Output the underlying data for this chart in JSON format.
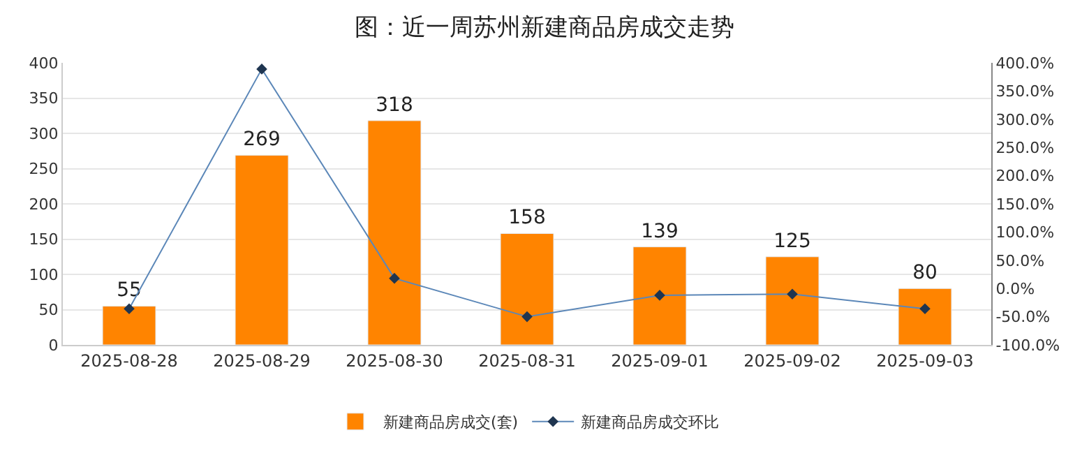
{
  "chart_data": {
    "type": "bar",
    "title": "图：近一周苏州新建商品房成交走势",
    "categories": [
      "2025-08-28",
      "2025-08-29",
      "2025-08-30",
      "2025-08-31",
      "2025-09-01",
      "2025-09-02",
      "2025-09-03"
    ],
    "series": [
      {
        "name": "新建商品房成交(套)",
        "color": "#ff8400",
        "values": [
          55,
          269,
          318,
          158,
          139,
          125,
          80
        ],
        "data_labels": true
      },
      {
        "name": "新建商品房成交环比",
        "type": "line",
        "axis": "y2",
        "color": "#5b87b8",
        "marker": "diamond",
        "values": [
          -36,
          389,
          18,
          -50,
          -12,
          -10,
          -36
        ]
      }
    ],
    "ylim": [
      0,
      400
    ],
    "yticks": [
      0,
      50,
      100,
      150,
      200,
      250,
      300,
      350,
      400
    ],
    "y2lim": [
      -100,
      400
    ],
    "y2ticks": [
      {
        "value": -100,
        "label": "-100.0%"
      },
      {
        "value": -50,
        "label": "-50.0%"
      },
      {
        "value": 0,
        "label": "0.0%"
      },
      {
        "value": 50,
        "label": "50.0%"
      },
      {
        "value": 100,
        "label": "100.0%"
      },
      {
        "value": 150,
        "label": "150.0%"
      },
      {
        "value": 200,
        "label": "200.0%"
      },
      {
        "value": 250,
        "label": "250.0%"
      },
      {
        "value": 300,
        "label": "300.0%"
      },
      {
        "value": 350,
        "label": "350.0%"
      },
      {
        "value": 400,
        "label": "400.0%"
      }
    ],
    "grid": "y",
    "legend": "bottom"
  }
}
